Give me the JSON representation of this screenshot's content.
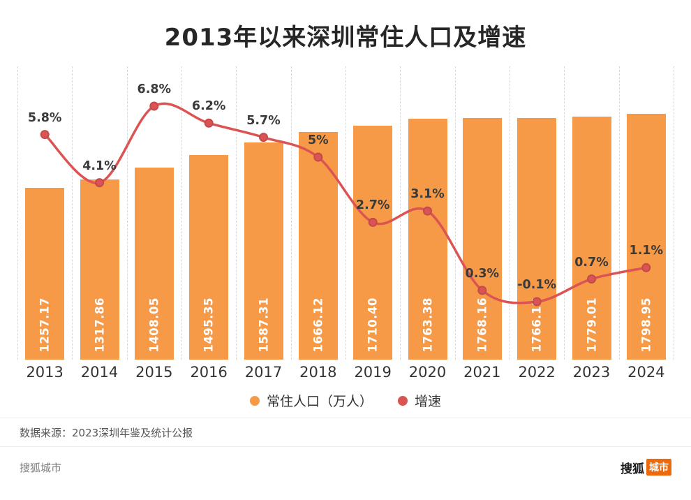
{
  "title": "2013年以来深圳常住人口及增速",
  "chart_data": {
    "type": "bar+line",
    "categories": [
      "2013",
      "2014",
      "2015",
      "2016",
      "2017",
      "2018",
      "2019",
      "2020",
      "2021",
      "2022",
      "2023",
      "2024"
    ],
    "series": [
      {
        "name": "常住人口（万人）",
        "type": "bar",
        "color": "#F79A47",
        "values": [
          1257.17,
          1317.86,
          1408.05,
          1495.35,
          1587.31,
          1666.12,
          1710.4,
          1763.38,
          1768.16,
          1766.18,
          1779.01,
          1798.95
        ]
      },
      {
        "name": "增速",
        "type": "line",
        "color": "#DB5353",
        "point_stroke_color": "#C24A4A",
        "values": [
          5.8,
          4.1,
          6.8,
          6.2,
          5.7,
          5,
          2.7,
          3.1,
          0.3,
          -0.1,
          0.7,
          1.1
        ],
        "labels": [
          "5.8%",
          "4.1%",
          "6.8%",
          "6.2%",
          "5.7%",
          "5%",
          "2.7%",
          "3.1%",
          "0.3%",
          "-0.1%",
          "0.7%",
          "1.1%"
        ]
      }
    ],
    "legend_position": "bottom",
    "grid": "vertical-dashed",
    "xlabel": "",
    "ylabel": ""
  },
  "footer": {
    "source": "数据来源：2023深圳年鉴及统计公报",
    "watermark": "搜狐城市",
    "logo_black": "搜狐",
    "logo_orange": "城市"
  }
}
